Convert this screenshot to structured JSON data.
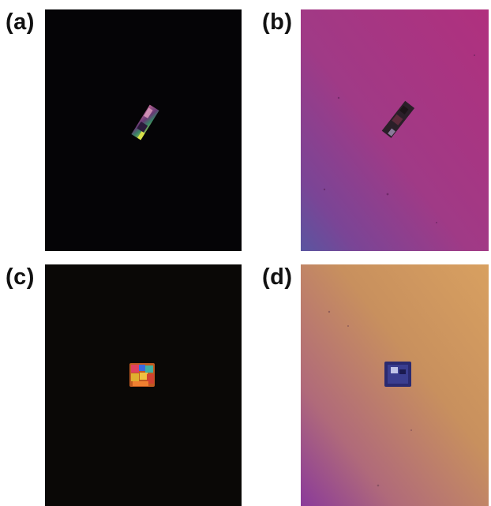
{
  "panels": [
    {
      "label": "(a)",
      "image": "crystal-polarized-dark-field"
    },
    {
      "label": "(b)",
      "image": "crystal-bright-field-purple"
    },
    {
      "label": "(c)",
      "image": "square-crystal-polarized-dark-field"
    },
    {
      "label": "(d)",
      "image": "square-crystal-bright-field-orange"
    }
  ]
}
